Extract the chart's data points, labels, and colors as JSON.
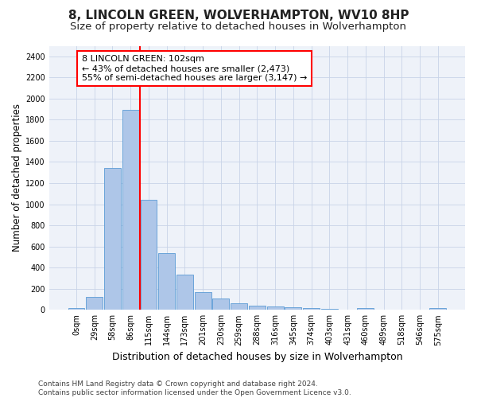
{
  "title": "8, LINCOLN GREEN, WOLVERHAMPTON, WV10 8HP",
  "subtitle": "Size of property relative to detached houses in Wolverhampton",
  "xlabel": "Distribution of detached houses by size in Wolverhampton",
  "ylabel": "Number of detached properties",
  "bar_labels": [
    "0sqm",
    "29sqm",
    "58sqm",
    "86sqm",
    "115sqm",
    "144sqm",
    "173sqm",
    "201sqm",
    "230sqm",
    "259sqm",
    "288sqm",
    "316sqm",
    "345sqm",
    "374sqm",
    "403sqm",
    "431sqm",
    "460sqm",
    "489sqm",
    "518sqm",
    "546sqm",
    "575sqm"
  ],
  "bar_heights": [
    20,
    125,
    1340,
    1890,
    1040,
    540,
    335,
    170,
    105,
    60,
    40,
    30,
    25,
    20,
    10,
    0,
    20,
    0,
    0,
    0,
    20
  ],
  "bar_color": "#aec6e8",
  "bar_edge_color": "#5b9bd5",
  "ylim": [
    0,
    2500
  ],
  "yticks": [
    0,
    200,
    400,
    600,
    800,
    1000,
    1200,
    1400,
    1600,
    1800,
    2000,
    2200,
    2400
  ],
  "red_line_index": 3,
  "annotation_box_text": "8 LINCOLN GREEN: 102sqm\n← 43% of detached houses are smaller (2,473)\n55% of semi-detached houses are larger (3,147) →",
  "footnote": "Contains HM Land Registry data © Crown copyright and database right 2024.\nContains public sector information licensed under the Open Government Licence v3.0.",
  "background_color": "#ffffff",
  "plot_bg_color": "#eef2f9",
  "grid_color": "#c8d4e8",
  "title_fontsize": 11,
  "subtitle_fontsize": 9.5,
  "xlabel_fontsize": 9,
  "ylabel_fontsize": 8.5,
  "annotation_fontsize": 8,
  "tick_fontsize": 7,
  "footnote_fontsize": 6.5
}
